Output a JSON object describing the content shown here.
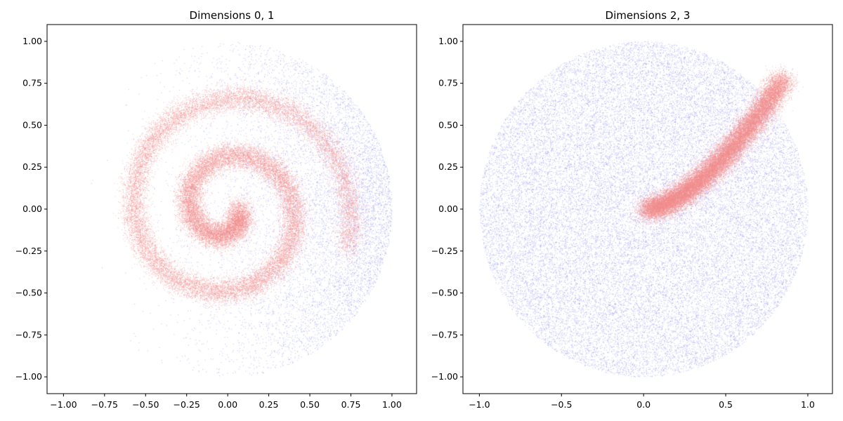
{
  "chart_data": [
    {
      "type": "scatter",
      "title": "Dimensions 0, 1",
      "xlabel": "",
      "ylabel": "",
      "xlim": [
        -1.1,
        1.15
      ],
      "ylim": [
        -1.1,
        1.1
      ],
      "xticks": [
        "−1.00",
        "−0.75",
        "−0.50",
        "−0.25",
        "0.00",
        "0.25",
        "0.50",
        "0.75",
        "1.00"
      ],
      "yticks": [
        "1.00",
        "0.75",
        "0.50",
        "0.25",
        "0.00",
        "−0.25",
        "−0.50",
        "−0.75",
        "−1.00"
      ],
      "grid": false,
      "series": [
        {
          "color": "#8888ee",
          "shape": "unit disk density, concentrated near x = 1",
          "points_estimated": 40000
        },
        {
          "color": "#f08a8a",
          "shape": "spiral from center out to radius ~0.8",
          "points_estimated": 30000
        }
      ]
    },
    {
      "type": "scatter",
      "title": "Dimensions 2, 3",
      "xlabel": "",
      "ylabel": "",
      "xlim": [
        -1.1,
        1.15
      ],
      "ylim": [
        -1.1,
        1.1
      ],
      "xticks": [
        "−1.0",
        "−0.5",
        "0.0",
        "0.5",
        "1.0"
      ],
      "yticks": [
        "1.00",
        "0.75",
        "0.50",
        "0.25",
        "0.00",
        "−0.25",
        "−0.50",
        "−0.75",
        "−1.00"
      ],
      "grid": false,
      "series": [
        {
          "color": "#8888ee",
          "shape": "uniform unit disk",
          "points_estimated": 30000
        },
        {
          "color": "#f08a8a",
          "shape": "curved band from (0,0) to (0.85,0.78)",
          "points_estimated": 25000
        }
      ]
    }
  ]
}
